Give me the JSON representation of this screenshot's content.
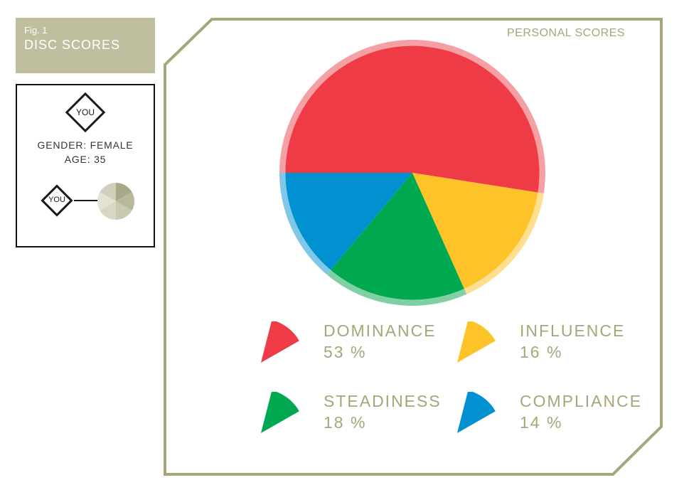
{
  "figure": {
    "number": "Fig. 1",
    "title": "DISC SCORES"
  },
  "profile": {
    "badge_label": "YOU",
    "gender": "GENDER: FEMALE",
    "age": "AGE: 35",
    "small_badge_label": "YOU",
    "mini_pie_colors": [
      "#a9a98a",
      "#b8b89c",
      "#c9c9b2",
      "#d7d7c4",
      "#e3e3d4",
      "#cfcfba"
    ]
  },
  "panel": {
    "label": "PERSONAL SCORES",
    "frame_color": "#a7a57a"
  },
  "chart_data": {
    "type": "pie",
    "title": "",
    "slices": [
      {
        "name": "DOMINANCE",
        "value": 53,
        "label": "53 %",
        "color": "#ef3b45",
        "ring_color": "#f4a0a4"
      },
      {
        "name": "INFLUENCE",
        "value": 16,
        "label": "16 %",
        "color": "#fec328",
        "ring_color": "#fddf8f"
      },
      {
        "name": "STEADINESS",
        "value": 18,
        "label": "18 %",
        "color": "#00a84f",
        "ring_color": "#7fd1a4"
      },
      {
        "name": "COMPLIANCE",
        "value": 14,
        "label": "14 %",
        "color": "#0191d0",
        "ring_color": "#80c8e8"
      }
    ],
    "legend_placement": "bottom"
  }
}
